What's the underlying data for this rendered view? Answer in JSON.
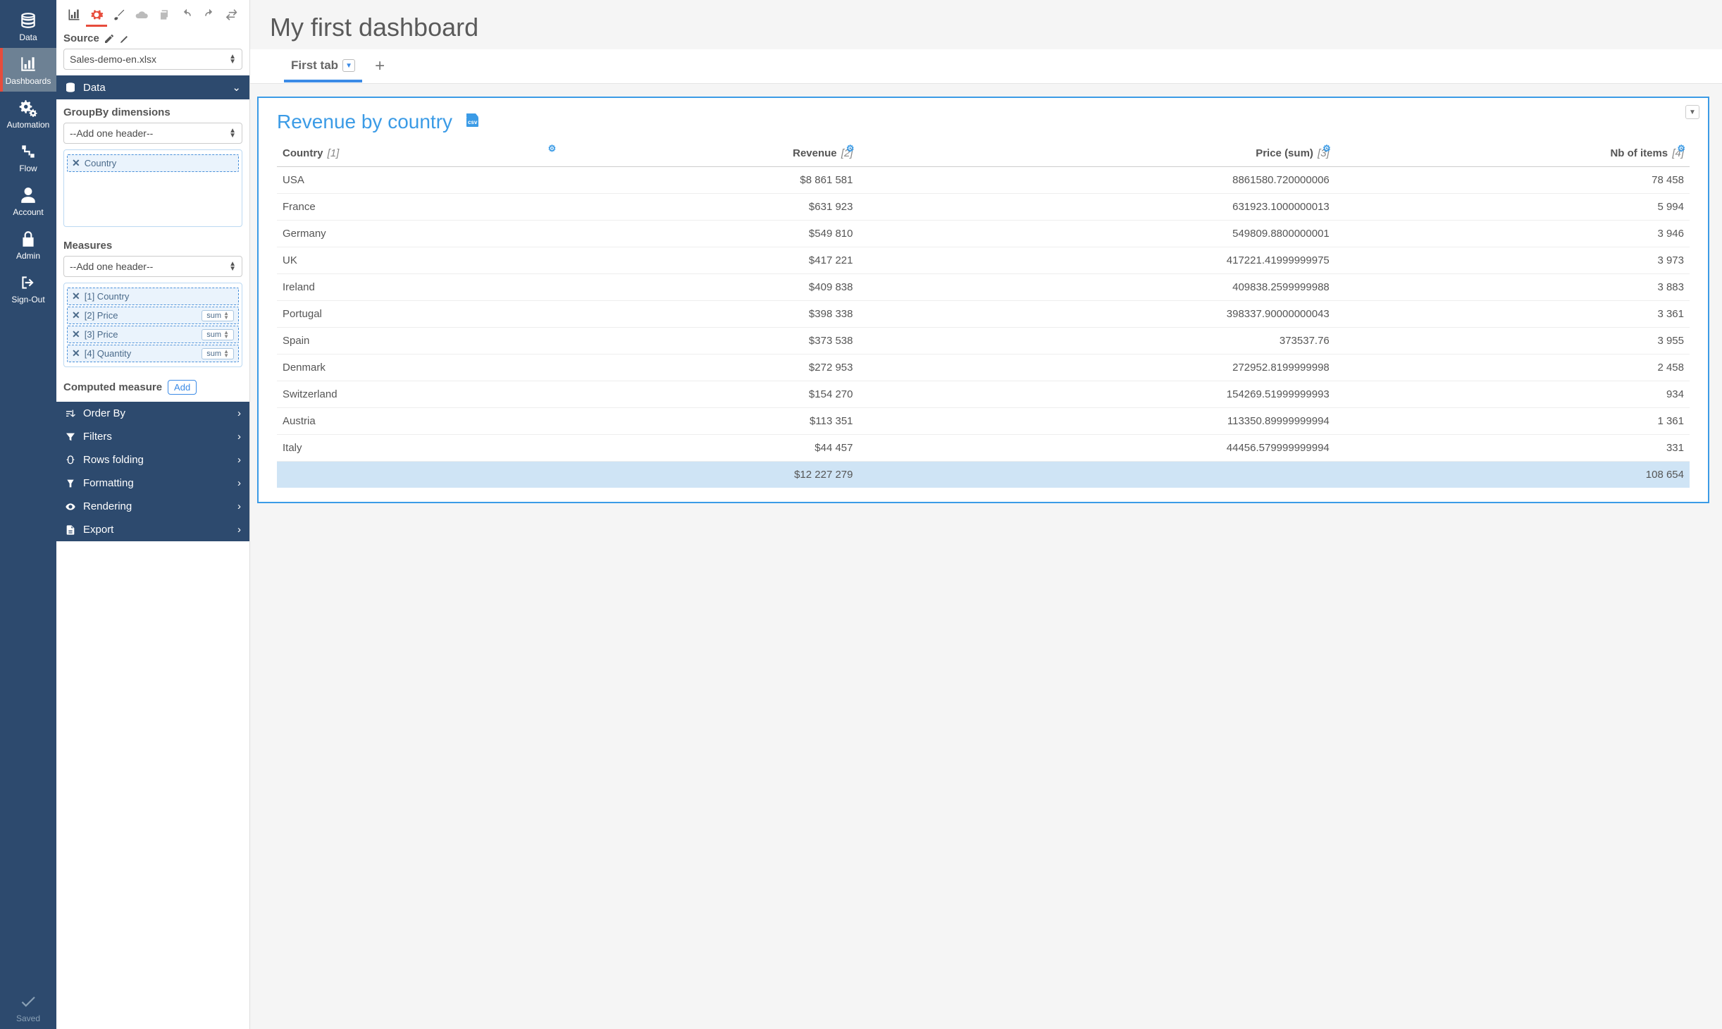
{
  "nav": {
    "items": [
      {
        "id": "data",
        "label": "Data"
      },
      {
        "id": "dashboards",
        "label": "Dashboards"
      },
      {
        "id": "automation",
        "label": "Automation"
      },
      {
        "id": "flow",
        "label": "Flow"
      },
      {
        "id": "account",
        "label": "Account"
      },
      {
        "id": "admin",
        "label": "Admin"
      },
      {
        "id": "signout",
        "label": "Sign-Out"
      }
    ],
    "saved_label": "Saved"
  },
  "config": {
    "source_label": "Source",
    "source_value": "Sales-demo-en.xlsx",
    "data_section": "Data",
    "groupby_label": "GroupBy dimensions",
    "groupby_placeholder": "--Add one header--",
    "groupby_chips": [
      {
        "label": "Country"
      }
    ],
    "measures_label": "Measures",
    "measures_placeholder": "--Add one header--",
    "measure_chips": [
      {
        "label": "[1] Country",
        "agg": null
      },
      {
        "label": "[2] Price",
        "agg": "sum"
      },
      {
        "label": "[3] Price",
        "agg": "sum"
      },
      {
        "label": "[4] Quantity",
        "agg": "sum"
      }
    ],
    "computed_label": "Computed measure",
    "add_label": "Add",
    "accordion": [
      {
        "icon": "sort",
        "label": "Order By"
      },
      {
        "icon": "filter",
        "label": "Filters"
      },
      {
        "icon": "fold",
        "label": "Rows folding"
      },
      {
        "icon": "format",
        "label": "Formatting"
      },
      {
        "icon": "render",
        "label": "Rendering"
      },
      {
        "icon": "export",
        "label": "Export"
      }
    ]
  },
  "dashboard": {
    "title": "My first dashboard",
    "tab_label": "First tab",
    "widget_title": "Revenue by country",
    "columns": [
      {
        "label": "Country",
        "idx": "[1]",
        "align": "l"
      },
      {
        "label": "Revenue",
        "idx": "[2]",
        "align": "r"
      },
      {
        "label": "Price (sum)",
        "idx": "[3]",
        "align": "r"
      },
      {
        "label": "Nb of items",
        "idx": "[4]",
        "align": "r"
      }
    ],
    "rows": [
      [
        "USA",
        "$8 861 581",
        "8861580.720000006",
        "78 458"
      ],
      [
        "France",
        "$631 923",
        "631923.1000000013",
        "5 994"
      ],
      [
        "Germany",
        "$549 810",
        "549809.8800000001",
        "3 946"
      ],
      [
        "UK",
        "$417 221",
        "417221.41999999975",
        "3 973"
      ],
      [
        "Ireland",
        "$409 838",
        "409838.2599999988",
        "3 883"
      ],
      [
        "Portugal",
        "$398 338",
        "398337.90000000043",
        "3 361"
      ],
      [
        "Spain",
        "$373 538",
        "373537.76",
        "3 955"
      ],
      [
        "Denmark",
        "$272 953",
        "272952.8199999998",
        "2 458"
      ],
      [
        "Switzerland",
        "$154 270",
        "154269.51999999993",
        "934"
      ],
      [
        "Austria",
        "$113 351",
        "113350.89999999994",
        "1 361"
      ],
      [
        "Italy",
        "$44 457",
        "44456.579999999994",
        "331"
      ]
    ],
    "total": [
      "",
      "$12 227 279",
      "",
      "108 654"
    ]
  },
  "colors": {
    "brand": "#2d4a6e",
    "accent": "#3b9be6",
    "danger": "#e74c3c"
  }
}
